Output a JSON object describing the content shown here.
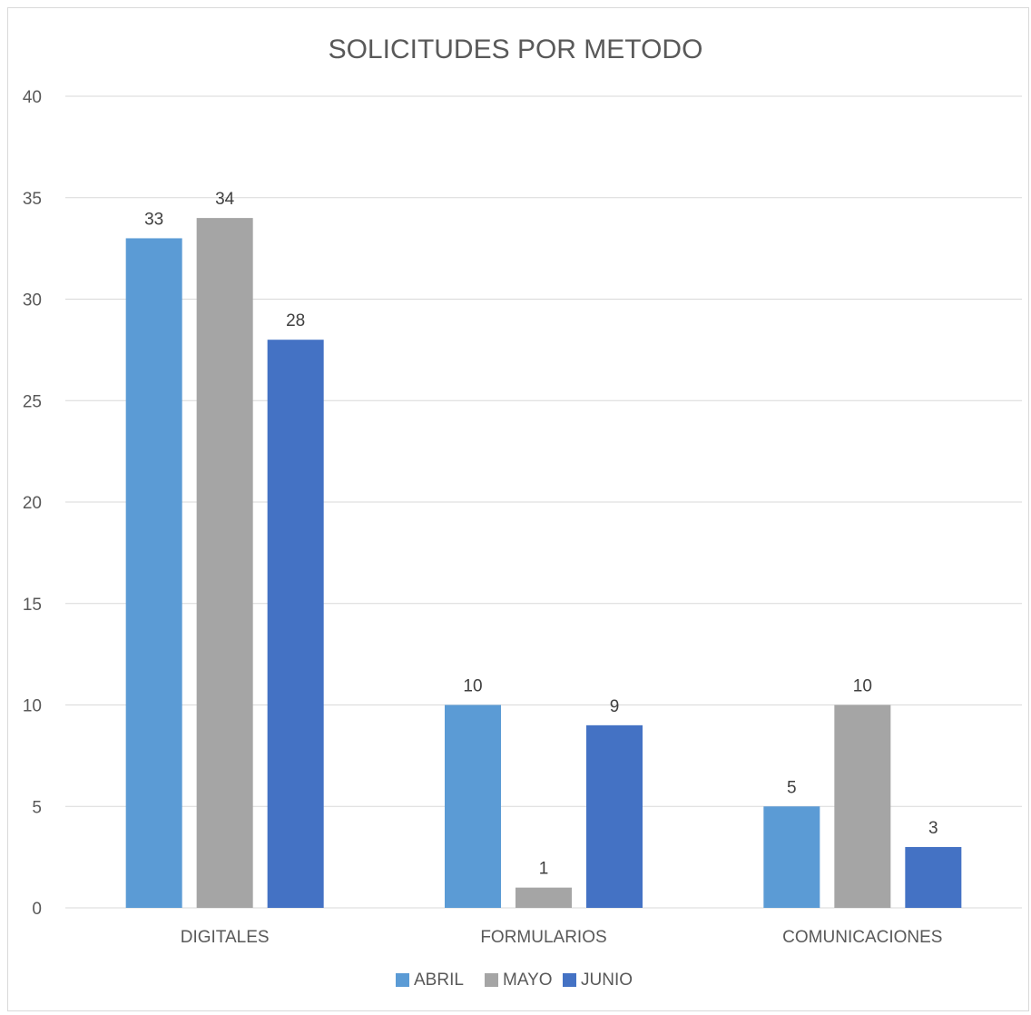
{
  "chart_data": {
    "type": "bar",
    "title": "SOLICITUDES POR METODO",
    "xlabel": "",
    "ylabel": "",
    "categories": [
      "DIGITALES",
      "FORMULARIOS",
      "COMUNICACIONES"
    ],
    "series": [
      {
        "name": "ABRIL",
        "values": [
          33,
          10,
          5
        ],
        "color": "#5b9bd5"
      },
      {
        "name": "MAYO",
        "values": [
          34,
          1,
          10
        ],
        "color": "#a5a5a5"
      },
      {
        "name": "JUNIO",
        "values": [
          28,
          9,
          3
        ],
        "color": "#4472c4"
      }
    ],
    "ylim": [
      0,
      40
    ],
    "yticks": [
      0,
      5,
      10,
      15,
      20,
      25,
      30,
      35,
      40
    ],
    "grid": true,
    "legend": "bottom",
    "data_labels": true
  }
}
